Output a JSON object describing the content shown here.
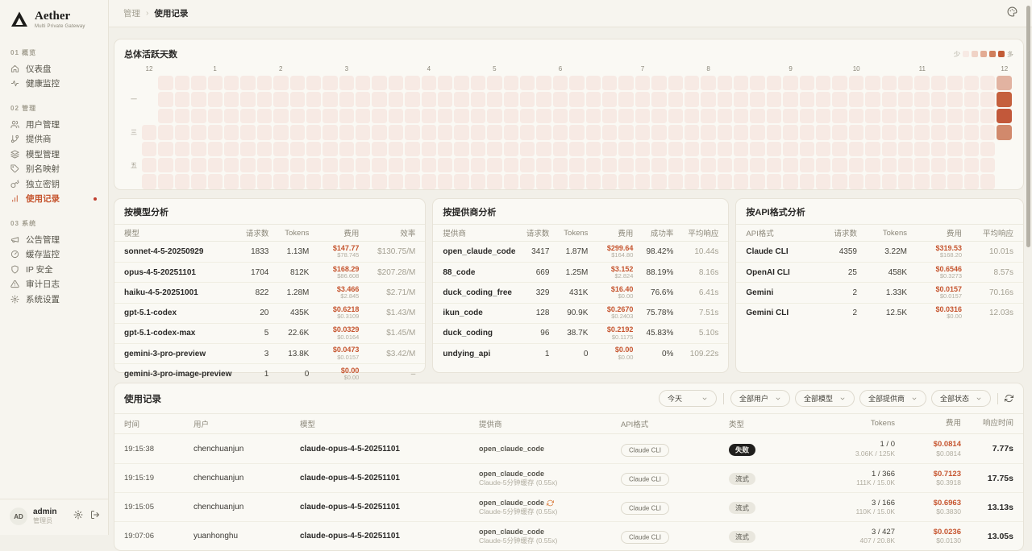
{
  "app": {
    "name": "Aether",
    "tagline": "Multi Private Gateway"
  },
  "breadcrumb": {
    "section": "管理",
    "sep": "›",
    "page": "使用记录"
  },
  "colors": {
    "accent": "#c6552f",
    "heat_base": "#f7eae4",
    "fail_badge": "#201f1d"
  },
  "sidebar": {
    "sections": [
      {
        "label": "01 概览",
        "items": [
          {
            "icon": "home-icon",
            "label": "仪表盘"
          },
          {
            "icon": "activity-icon",
            "label": "健康监控"
          }
        ]
      },
      {
        "label": "02 管理",
        "items": [
          {
            "icon": "users-icon",
            "label": "用户管理"
          },
          {
            "icon": "branch-icon",
            "label": "提供商"
          },
          {
            "icon": "layers-icon",
            "label": "模型管理"
          },
          {
            "icon": "tag-icon",
            "label": "别名映射"
          },
          {
            "icon": "key-icon",
            "label": "独立密钥"
          },
          {
            "icon": "chart-icon",
            "label": "使用记录",
            "active": true,
            "dot": true
          }
        ]
      },
      {
        "label": "03 系统",
        "items": [
          {
            "icon": "megaphone-icon",
            "label": "公告管理"
          },
          {
            "icon": "gauge-icon",
            "label": "缓存监控"
          },
          {
            "icon": "shield-icon",
            "label": "IP 安全"
          },
          {
            "icon": "alert-icon",
            "label": "审计日志"
          },
          {
            "icon": "gear-icon",
            "label": "系统设置"
          }
        ]
      }
    ],
    "user": {
      "initials": "AD",
      "name": "admin",
      "role": "管理员"
    }
  },
  "heatmap": {
    "title": "总体活跃天数",
    "legend_less": "少",
    "legend_more": "多",
    "legend_colors": [
      "#f7eae4",
      "#f0d3c6",
      "#e3ac94",
      "#d07f5c",
      "#c25b36"
    ],
    "base_color": "#f7eae4",
    "cols": 53,
    "rows": 7,
    "first_col_hidden_rows": 3,
    "last_col_visible_rows": 4,
    "months": [
      {
        "label": "12",
        "col": 0
      },
      {
        "label": "1",
        "col": 4
      },
      {
        "label": "2",
        "col": 8
      },
      {
        "label": "3",
        "col": 12
      },
      {
        "label": "4",
        "col": 17
      },
      {
        "label": "5",
        "col": 21
      },
      {
        "label": "6",
        "col": 25
      },
      {
        "label": "7",
        "col": 30
      },
      {
        "label": "8",
        "col": 34
      },
      {
        "label": "9",
        "col": 39
      },
      {
        "label": "10",
        "col": 43
      },
      {
        "label": "11",
        "col": 47
      },
      {
        "label": "12",
        "col": 52
      }
    ],
    "weekdays": [
      {
        "label": "一",
        "row": 1
      },
      {
        "label": "三",
        "row": 3
      },
      {
        "label": "五",
        "row": 5
      }
    ],
    "active_cells": [
      {
        "col": 52,
        "row": 0,
        "color": "#e2b3a1"
      },
      {
        "col": 52,
        "row": 1,
        "color": "#c5603d"
      },
      {
        "col": 52,
        "row": 2,
        "color": "#c2583a"
      },
      {
        "col": 52,
        "row": 3,
        "color": "#d1896c"
      }
    ]
  },
  "model_table": {
    "title": "按模型分析",
    "headers": [
      "模型",
      "请求数",
      "Tokens",
      "费用",
      "效率"
    ],
    "rows": [
      {
        "name": "sonnet-4-5-20250929",
        "requests": "1833",
        "tokens": "1.13M",
        "cost": "$147.77",
        "cost_sub": "$78.745",
        "last": "$130.75/M"
      },
      {
        "name": "opus-4-5-20251101",
        "requests": "1704",
        "tokens": "812K",
        "cost": "$168.29",
        "cost_sub": "$86.608",
        "last": "$207.28/M"
      },
      {
        "name": "haiku-4-5-20251001",
        "requests": "822",
        "tokens": "1.28M",
        "cost": "$3.466",
        "cost_sub": "$2.845",
        "last": "$2.71/M"
      },
      {
        "name": "gpt-5.1-codex",
        "requests": "20",
        "tokens": "435K",
        "cost": "$0.6218",
        "cost_sub": "$0.3109",
        "last": "$1.43/M"
      },
      {
        "name": "gpt-5.1-codex-max",
        "requests": "5",
        "tokens": "22.6K",
        "cost": "$0.0329",
        "cost_sub": "$0.0164",
        "last": "$1.45/M"
      },
      {
        "name": "gemini-3-pro-preview",
        "requests": "3",
        "tokens": "13.8K",
        "cost": "$0.0473",
        "cost_sub": "$0.0157",
        "last": "$3.42/M"
      },
      {
        "name": "gemini-3-pro-image-preview",
        "requests": "1",
        "tokens": "0",
        "cost": "$0.00",
        "cost_sub": "$0.00",
        "last": "–"
      }
    ]
  },
  "provider_table": {
    "title": "按提供商分析",
    "headers": [
      "提供商",
      "请求数",
      "Tokens",
      "费用",
      "成功率",
      "平均响应"
    ],
    "rows": [
      {
        "name": "open_claude_code",
        "requests": "3417",
        "tokens": "1.87M",
        "cost": "$299.64",
        "cost_sub": "$164.80",
        "rate": "98.42%",
        "last": "10.44s"
      },
      {
        "name": "88_code",
        "requests": "669",
        "tokens": "1.25M",
        "cost": "$3.152",
        "cost_sub": "$2.824",
        "rate": "88.19%",
        "last": "8.16s"
      },
      {
        "name": "duck_coding_free",
        "requests": "329",
        "tokens": "431K",
        "cost": "$16.40",
        "cost_sub": "$0.00",
        "rate": "76.6%",
        "last": "6.41s"
      },
      {
        "name": "ikun_code",
        "requests": "128",
        "tokens": "90.9K",
        "cost": "$0.2670",
        "cost_sub": "$0.2403",
        "rate": "75.78%",
        "last": "7.51s"
      },
      {
        "name": "duck_coding",
        "requests": "96",
        "tokens": "38.7K",
        "cost": "$0.2192",
        "cost_sub": "$0.1175",
        "rate": "45.83%",
        "last": "5.10s"
      },
      {
        "name": "undying_api",
        "requests": "1",
        "tokens": "0",
        "cost": "$0.00",
        "cost_sub": "$0.00",
        "rate": "0%",
        "last": "109.22s"
      }
    ]
  },
  "api_table": {
    "title": "按API格式分析",
    "headers": [
      "API格式",
      "请求数",
      "Tokens",
      "费用",
      "平均响应"
    ],
    "rows": [
      {
        "name": "Claude CLI",
        "requests": "4359",
        "tokens": "3.22M",
        "cost": "$319.53",
        "cost_sub": "$168.20",
        "last": "10.01s"
      },
      {
        "name": "OpenAI CLI",
        "requests": "25",
        "tokens": "458K",
        "cost": "$0.6546",
        "cost_sub": "$0.3273",
        "last": "8.57s"
      },
      {
        "name": "Gemini",
        "requests": "2",
        "tokens": "1.33K",
        "cost": "$0.0157",
        "cost_sub": "$0.0157",
        "last": "70.16s"
      },
      {
        "name": "Gemini CLI",
        "requests": "2",
        "tokens": "12.5K",
        "cost": "$0.0316",
        "cost_sub": "$0.00",
        "last": "12.03s"
      }
    ]
  },
  "records": {
    "title": "使用记录",
    "filters": [
      "今天",
      "全部用户",
      "全部模型",
      "全部提供商",
      "全部状态"
    ],
    "headers": [
      "时间",
      "用户",
      "模型",
      "提供商",
      "API格式",
      "类型",
      "Tokens",
      "费用",
      "响应时间"
    ],
    "rows": [
      {
        "time": "19:15:38",
        "user": "chenchuanjun",
        "model": "claude-opus-4-5-20251101",
        "provider": "open_claude_code",
        "provider_sub": "",
        "retry": false,
        "api": "Claude CLI",
        "type": "失败",
        "type_style": "fail",
        "tokens": "1 / 0",
        "tokens_sub": "3.06K / 125K",
        "cost": "$0.0814",
        "cost_sub": "$0.0814",
        "duration": "7.77s"
      },
      {
        "time": "19:15:19",
        "user": "chenchuanjun",
        "model": "claude-opus-4-5-20251101",
        "provider": "open_claude_code",
        "provider_sub": "Claude-5分钟缓存 (0.55x)",
        "retry": false,
        "api": "Claude CLI",
        "type": "流式",
        "type_style": "stream",
        "tokens": "1 / 366",
        "tokens_sub": "111K / 15.0K",
        "cost": "$0.7123",
        "cost_sub": "$0.3918",
        "duration": "17.75s"
      },
      {
        "time": "19:15:05",
        "user": "chenchuanjun",
        "model": "claude-opus-4-5-20251101",
        "provider": "open_claude_code",
        "provider_sub": "Claude-5分钟缓存 (0.55x)",
        "retry": true,
        "api": "Claude CLI",
        "type": "流式",
        "type_style": "stream",
        "tokens": "3 / 166",
        "tokens_sub": "110K / 15.0K",
        "cost": "$0.6963",
        "cost_sub": "$0.3830",
        "duration": "13.13s"
      },
      {
        "time": "19:07:06",
        "user": "yuanhonghu",
        "model": "claude-opus-4-5-20251101",
        "provider": "open_claude_code",
        "provider_sub": "Claude-5分钟缓存 (0.55x)",
        "retry": false,
        "api": "Claude CLI",
        "type": "流式",
        "type_style": "stream",
        "tokens": "3 / 427",
        "tokens_sub": "407 / 20.8K",
        "cost": "$0.0236",
        "cost_sub": "$0.0130",
        "duration": "13.05s"
      }
    ]
  }
}
